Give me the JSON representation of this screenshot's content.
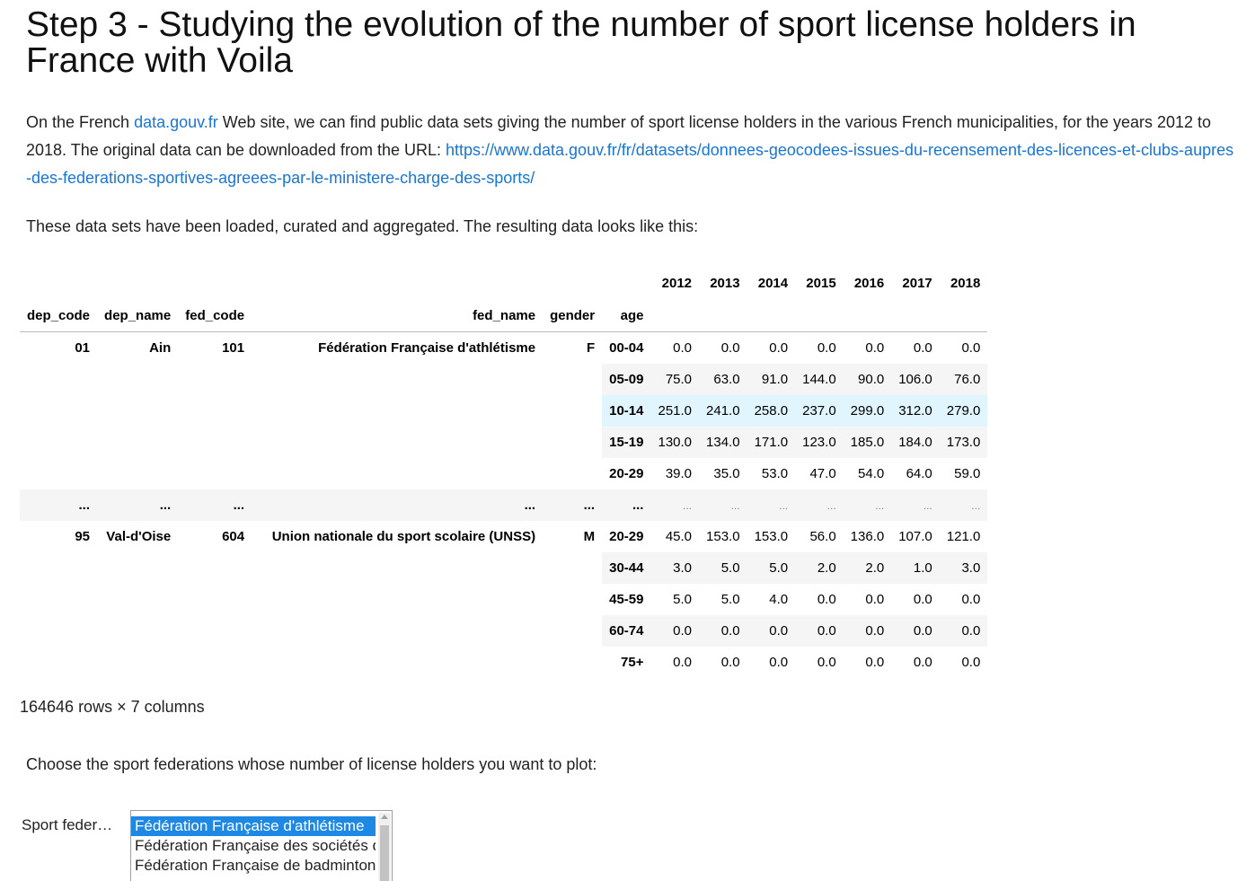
{
  "heading": "Step 3 - Studying the evolution of the number of sport license holders in France with Voila",
  "intro": {
    "text_before_link": "On the French ",
    "link1": "data.gouv.fr",
    "text_after_link": " Web site, we can find public data sets giving the number of sport license holders in the various French municipalities, for the years 2012 to 2018. The original data can be downloaded from the URL: ",
    "link2": "https://www.data.gouv.fr/fr/datasets/donnees-geocodees-issues-du-recensement-des-licences-et-clubs-aupres-des-federations-sportives-agreees-par-le-ministere-charge-des-sports/"
  },
  "loaded_text": "These data sets have been loaded, curated and aggregated. The resulting data looks like this:",
  "table": {
    "year_headers": [
      "2012",
      "2013",
      "2014",
      "2015",
      "2016",
      "2017",
      "2018"
    ],
    "index_headers": [
      "dep_code",
      "dep_name",
      "fed_code",
      "fed_name",
      "gender",
      "age"
    ],
    "groups": [
      {
        "dep_code": "01",
        "dep_name": "Ain",
        "fed_code": "101",
        "fed_name": "Fédération Française d'athlétisme",
        "gender": "F",
        "rows": [
          {
            "age": "00-04",
            "values": [
              "0.0",
              "0.0",
              "0.0",
              "0.0",
              "0.0",
              "0.0",
              "0.0"
            ]
          },
          {
            "age": "05-09",
            "values": [
              "75.0",
              "63.0",
              "91.0",
              "144.0",
              "90.0",
              "106.0",
              "76.0"
            ]
          },
          {
            "age": "10-14",
            "values": [
              "251.0",
              "241.0",
              "258.0",
              "237.0",
              "299.0",
              "312.0",
              "279.0"
            ]
          },
          {
            "age": "15-19",
            "values": [
              "130.0",
              "134.0",
              "171.0",
              "123.0",
              "185.0",
              "184.0",
              "173.0"
            ]
          },
          {
            "age": "20-29",
            "values": [
              "39.0",
              "35.0",
              "53.0",
              "47.0",
              "54.0",
              "64.0",
              "59.0"
            ]
          }
        ]
      },
      {
        "dep_code": "95",
        "dep_name": "Val-d'Oise",
        "fed_code": "604",
        "fed_name": "Union nationale du sport scolaire (UNSS)",
        "gender": "M",
        "rows": [
          {
            "age": "20-29",
            "values": [
              "45.0",
              "153.0",
              "153.0",
              "56.0",
              "136.0",
              "107.0",
              "121.0"
            ]
          },
          {
            "age": "30-44",
            "values": [
              "3.0",
              "5.0",
              "5.0",
              "2.0",
              "2.0",
              "1.0",
              "3.0"
            ]
          },
          {
            "age": "45-59",
            "values": [
              "5.0",
              "5.0",
              "4.0",
              "0.0",
              "0.0",
              "0.0",
              "0.0"
            ]
          },
          {
            "age": "60-74",
            "values": [
              "0.0",
              "0.0",
              "0.0",
              "0.0",
              "0.0",
              "0.0",
              "0.0"
            ]
          },
          {
            "age": "75+",
            "values": [
              "0.0",
              "0.0",
              "0.0",
              "0.0",
              "0.0",
              "0.0",
              "0.0"
            ]
          }
        ]
      }
    ],
    "ellipsis_index": "...",
    "ellipsis_value": "..."
  },
  "row_count": "164646 rows × 7 columns",
  "choose_text": "Choose the sport federations whose number of license holders you want to plot:",
  "select": {
    "label": "Sport feder…",
    "options": [
      "Fédération Française d'athlétisme",
      "Fédération Française des sociétés d'aviron",
      "Fédération Française de badminton"
    ],
    "selected_index": 0
  },
  "colors": {
    "link": "#1976d2",
    "row_shade": "#f5f5f5",
    "row_hover": "#e1f5fe",
    "selected_option": "#1e88e5"
  }
}
